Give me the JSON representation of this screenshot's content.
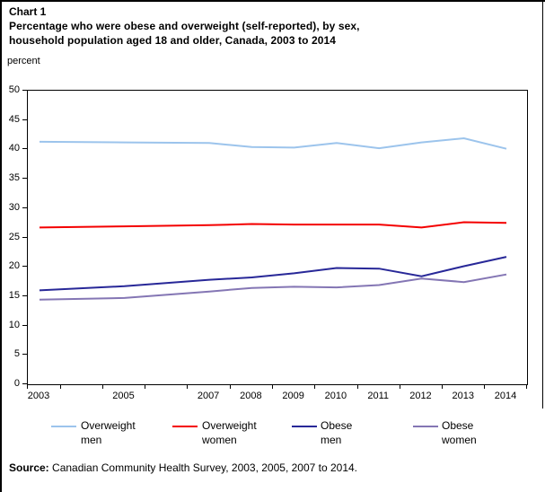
{
  "figure": {
    "label": "Chart 1",
    "title_line1": "Percentage who were obese and overweight (self-reported), by sex,",
    "title_line2": "household population aged 18 and older, Canada, 2003 to 2014",
    "unit_label": "percent"
  },
  "chart_data": {
    "type": "line",
    "x": [
      2003,
      2005,
      2007,
      2008,
      2009,
      2010,
      2011,
      2012,
      2013,
      2014
    ],
    "x_axis_year_range": [
      2003,
      2014
    ],
    "series": [
      {
        "name": "Overweight men",
        "color": "#9cc4ec",
        "values": [
          41.3,
          41.2,
          41.1,
          40.4,
          40.3,
          41.1,
          40.2,
          41.2,
          41.9,
          40.1
        ]
      },
      {
        "name": "Overweight women",
        "color": "#f40000",
        "values": [
          26.7,
          26.9,
          27.1,
          27.3,
          27.2,
          27.2,
          27.2,
          26.7,
          27.6,
          27.5
        ]
      },
      {
        "name": "Obese men",
        "color": "#282898",
        "values": [
          16.0,
          16.7,
          17.8,
          18.2,
          18.9,
          19.8,
          19.7,
          18.4,
          20.1,
          21.7
        ]
      },
      {
        "name": "Obese women",
        "color": "#8476b4",
        "values": [
          14.4,
          14.7,
          15.8,
          16.4,
          16.6,
          16.5,
          16.9,
          18.0,
          17.4,
          18.7
        ]
      }
    ],
    "title": "Percentage who were obese and overweight (self-reported), by sex, household population aged 18 and older, Canada, 2003 to 2014",
    "xlabel": "",
    "ylabel": "percent",
    "ylim": [
      0,
      50
    ],
    "ytick_labels": [
      "0",
      "5",
      "10",
      "15",
      "20",
      "25",
      "30",
      "35",
      "40",
      "45",
      "50"
    ],
    "xtick_labels": [
      "2003",
      "2005",
      "2007",
      "2008",
      "2009",
      "2010",
      "2011",
      "2012",
      "2013",
      "2014"
    ],
    "grid": false,
    "legend_position": "bottom"
  },
  "legend": {
    "items": [
      {
        "line1": "Overweight",
        "line2": "men"
      },
      {
        "line1": "Overweight",
        "line2": "women"
      },
      {
        "line1": "Obese men",
        "line2": ""
      },
      {
        "line1": "Obese women",
        "line2": ""
      }
    ]
  },
  "source": {
    "prefix": "Source:",
    "text": " Canadian Community Health Survey, 2003, 2005, 2007 to 2014."
  }
}
